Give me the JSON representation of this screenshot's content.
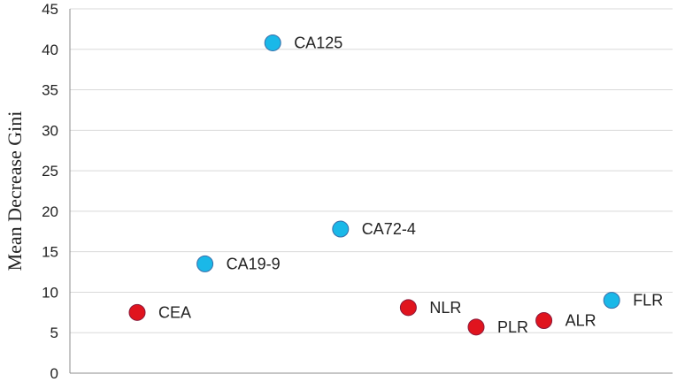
{
  "chart_data": {
    "type": "scatter",
    "title": "",
    "xlabel": "",
    "ylabel": "Mean Decrease Gini",
    "ylim": [
      0,
      45
    ],
    "yticks": [
      0,
      5,
      10,
      15,
      20,
      25,
      30,
      35,
      40,
      45
    ],
    "grid": true,
    "legend": "none",
    "points": [
      {
        "label": "CEA",
        "x": 1,
        "y": 7.5,
        "color": "#e0141e"
      },
      {
        "label": "CA19-9",
        "x": 2,
        "y": 13.5,
        "color": "#1ab8e8"
      },
      {
        "label": "CA125",
        "x": 3,
        "y": 40.8,
        "color": "#1ab8e8"
      },
      {
        "label": "CA72-4",
        "x": 4,
        "y": 17.8,
        "color": "#1ab8e8"
      },
      {
        "label": "NLR",
        "x": 5,
        "y": 8.1,
        "color": "#e0141e"
      },
      {
        "label": "PLR",
        "x": 6,
        "y": 5.7,
        "color": "#e0141e"
      },
      {
        "label": "ALR",
        "x": 7,
        "y": 6.5,
        "color": "#e0141e"
      },
      {
        "label": "FLR",
        "x": 8,
        "y": 9.0,
        "color": "#1ab8e8"
      }
    ],
    "xlim": [
      0,
      9
    ]
  }
}
